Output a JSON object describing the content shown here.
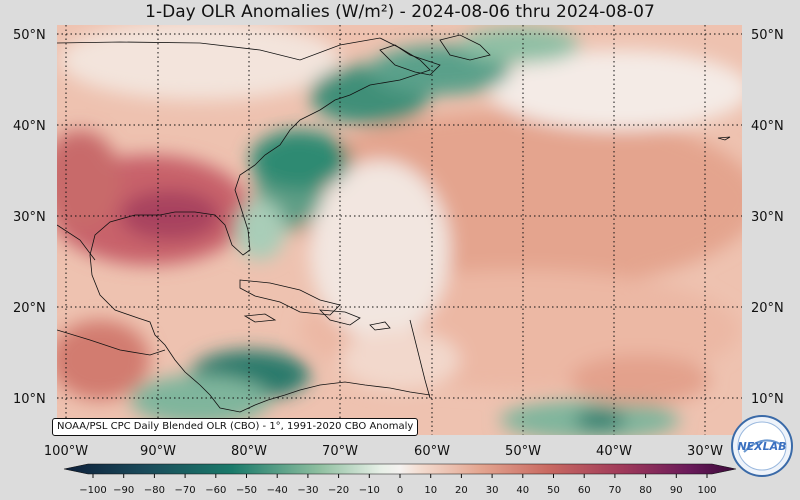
{
  "title": "1-Day OLR Anomalies (W/m²) - 2024-08-06 thru 2024-08-07",
  "credit": "NOAA/PSL CPC Daily Blended OLR (CBO) - 1°, 1991-2020 CBO Anomaly",
  "logo_text": "NEXLAB",
  "lat_labels": [
    "50°N",
    "40°N",
    "30°N",
    "20°N",
    "10°N"
  ],
  "lon_labels": [
    "100°W",
    "90°W",
    "80°W",
    "70°W",
    "60°W",
    "50°W",
    "40°W",
    "30°W"
  ],
  "colorbar": {
    "ticks": [
      "−100",
      "−90",
      "−80",
      "−70",
      "−60",
      "−50",
      "−40",
      "−30",
      "−20",
      "−10",
      "0",
      "10",
      "20",
      "30",
      "40",
      "50",
      "60",
      "70",
      "80",
      "90",
      "100"
    ],
    "negative_color": "#1a7a6a",
    "positive_color": "#c0505a",
    "extreme_negative": "#0d1f3a",
    "extreme_positive": "#3a0a3a"
  },
  "map_colors": {
    "neutral": "#f5eeea",
    "land_line": "#111111",
    "grid_line": "#111111"
  }
}
